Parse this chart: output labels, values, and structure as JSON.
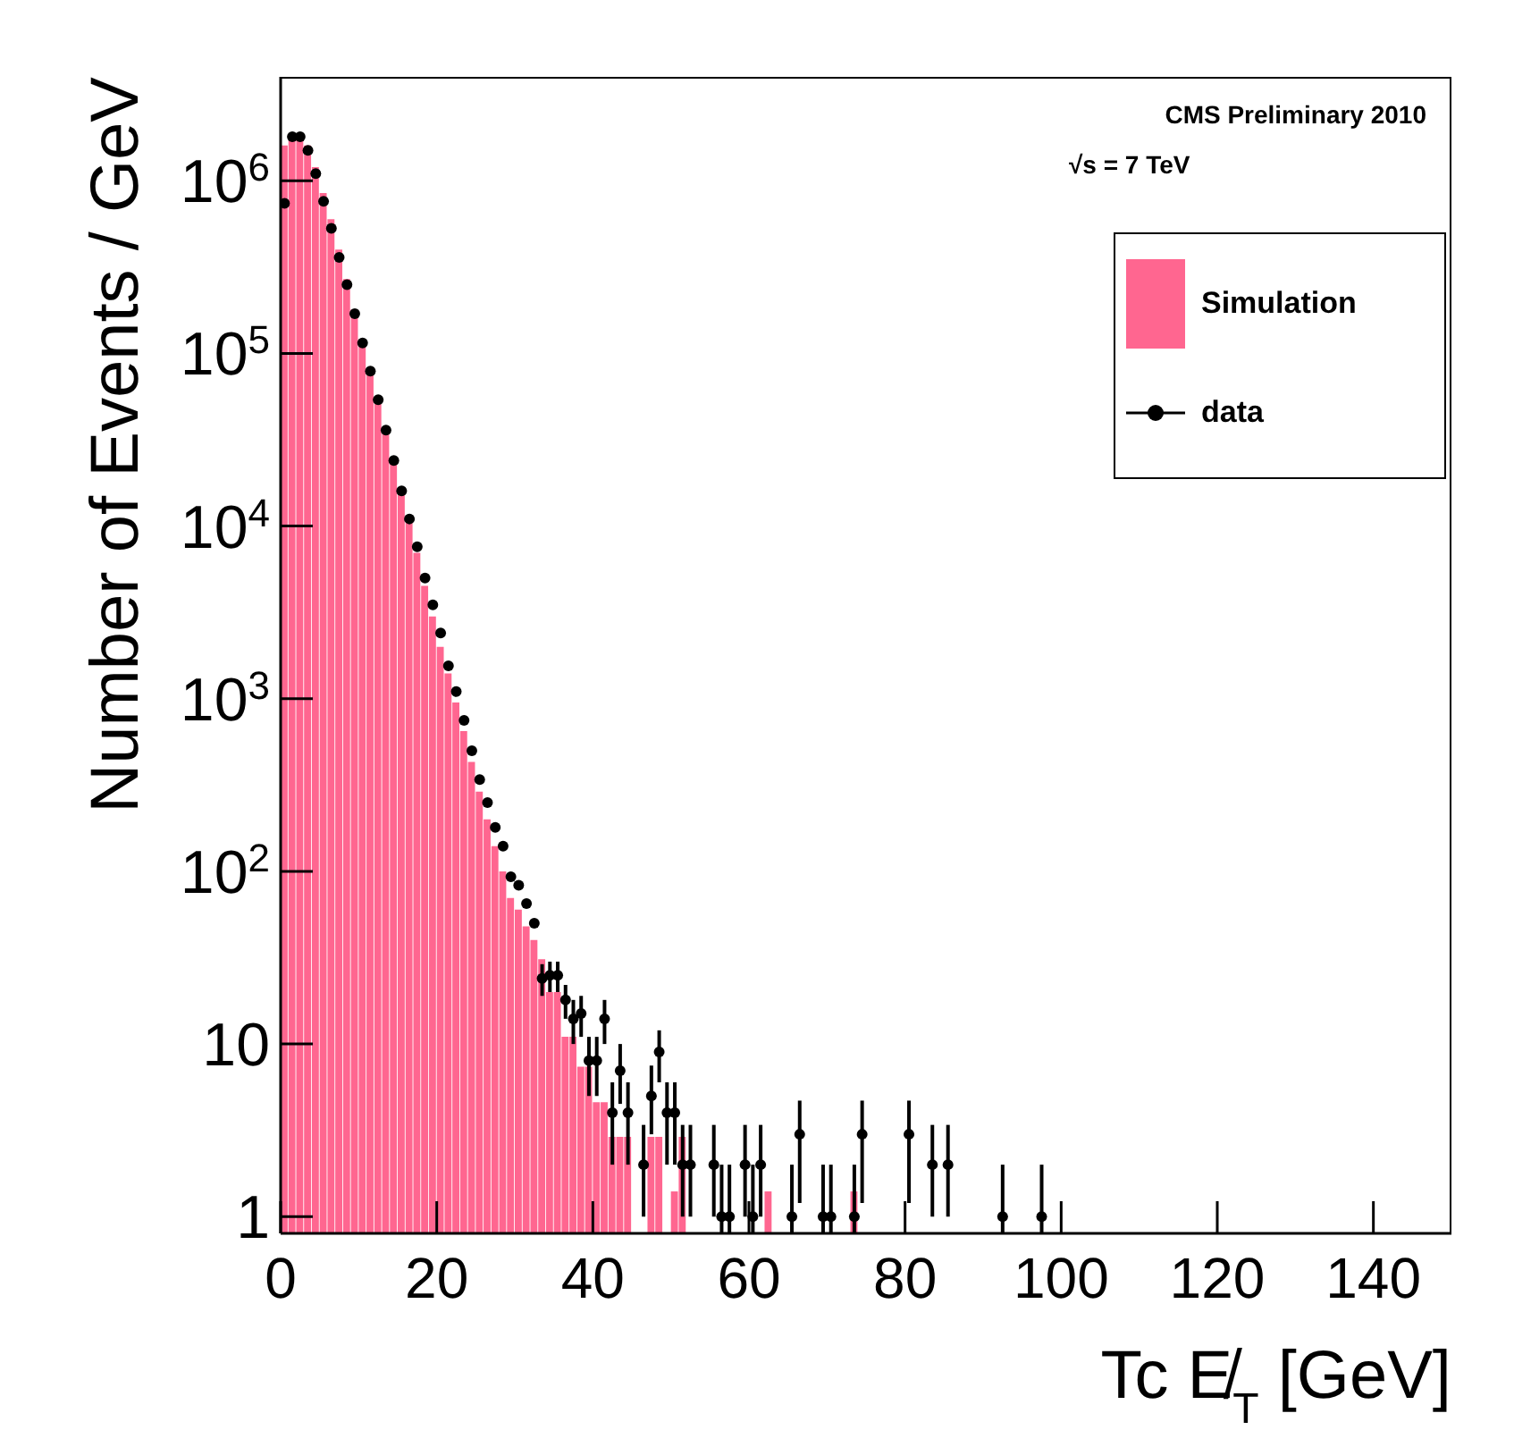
{
  "chart_data": {
    "type": "histogram",
    "xlabel": "Tc E̸$_{T}$ [GeV]",
    "ylabel": "Number of Events / GeV",
    "annotations": [
      "CMS Preliminary 2010",
      "√s = 7 TeV"
    ],
    "bins": [
      0,
      1,
      2,
      3,
      4,
      5,
      6,
      7,
      8,
      9,
      10,
      11,
      12,
      13,
      14,
      15,
      16,
      17,
      18,
      19,
      20,
      21,
      22,
      23,
      24,
      25,
      26,
      27,
      28,
      29,
      30,
      31,
      32,
      33,
      34,
      35,
      36,
      37,
      38,
      39,
      40,
      41,
      42,
      43,
      44,
      45,
      46,
      47,
      48,
      49,
      50,
      51,
      52,
      53,
      54,
      55,
      56,
      57,
      58,
      59,
      60,
      61,
      62,
      63,
      64,
      65,
      66,
      67,
      68,
      69,
      70,
      71,
      72,
      73,
      74
    ],
    "series": [
      {
        "name": "Simulation",
        "type": "histogram",
        "color": "#ff6690",
        "values": [
          1600000,
          1800000,
          1800000,
          1600000,
          1200000,
          850000,
          600000,
          400000,
          270000,
          180000,
          120000,
          80000,
          55000,
          36000,
          24000,
          16000,
          11000,
          7000,
          4500,
          3000,
          2000,
          1400,
          950,
          650,
          430,
          290,
          200,
          140,
          100,
          70,
          60,
          48,
          40,
          31,
          20,
          20,
          11,
          11,
          7.4,
          7.4,
          4.6,
          4.6,
          2.9,
          2.9,
          2.9,
          null,
          null,
          2.9,
          2.9,
          null,
          1.4,
          2.9,
          null,
          null,
          null,
          null,
          null,
          null,
          null,
          null,
          null,
          null,
          1.4,
          null,
          null,
          null,
          null,
          null,
          null,
          null,
          null,
          null,
          null,
          1.4
        ]
      },
      {
        "name": "data",
        "type": "scatter",
        "color": "#000000",
        "marker": "circle",
        "x": [
          0.5,
          1.5,
          2.5,
          3.5,
          4.5,
          5.5,
          6.5,
          7.5,
          8.5,
          9.5,
          10.5,
          11.5,
          12.5,
          13.5,
          14.5,
          15.5,
          16.5,
          17.5,
          18.5,
          19.5,
          20.5,
          21.5,
          22.5,
          23.5,
          24.5,
          25.5,
          26.5,
          27.5,
          28.5,
          29.5,
          30.5,
          31.5,
          32.5,
          33.5,
          34.5,
          35.5,
          36.5,
          37.5,
          38.5,
          39.5,
          40.5,
          41.5,
          42.5,
          43.5,
          44.5,
          46.5,
          47.5,
          48.5,
          49.5,
          50.5,
          51.5,
          52.5,
          55.5,
          56.5,
          57.5,
          59.5,
          60.5,
          61.5,
          65.5,
          66.5,
          69.5,
          70.5,
          73.5,
          74.5,
          80.5,
          83.5,
          85.5,
          92.5,
          97.5
        ],
        "values": [
          740000,
          1800000,
          1800000,
          1500000,
          1100000,
          760000,
          530000,
          360000,
          250000,
          170000,
          115000,
          79000,
          54000,
          36000,
          24000,
          16000,
          11000,
          7600,
          5000,
          3500,
          2400,
          1550,
          1100,
          750,
          500,
          340,
          250,
          180,
          140,
          93,
          83,
          65,
          50,
          24,
          25,
          25,
          18,
          14,
          15,
          8,
          8,
          14,
          4,
          7,
          4,
          2,
          5,
          9,
          4,
          4,
          2,
          2,
          2,
          1,
          1,
          2,
          1,
          2,
          1,
          3,
          1,
          1,
          1,
          3,
          3,
          2,
          2,
          1,
          1
        ],
        "errors": [
          null,
          null,
          null,
          null,
          null,
          null,
          null,
          null,
          null,
          null,
          null,
          null,
          null,
          null,
          null,
          null,
          null,
          null,
          null,
          null,
          null,
          null,
          null,
          null,
          null,
          null,
          null,
          null,
          null,
          null,
          null,
          null,
          null,
          [
            19,
            29
          ],
          [
            20,
            30
          ],
          [
            20,
            30
          ],
          [
            14,
            22
          ],
          [
            10,
            18
          ],
          [
            11,
            19
          ],
          [
            5,
            11
          ],
          [
            5,
            11
          ],
          [
            10,
            18
          ],
          [
            2,
            6
          ],
          [
            4.5,
            10
          ],
          [
            2,
            6
          ],
          [
            1,
            3.4
          ],
          [
            3,
            7.5
          ],
          [
            6,
            12
          ],
          [
            2,
            6
          ],
          [
            2,
            6
          ],
          [
            1,
            3.4
          ],
          [
            1,
            3.4
          ],
          [
            1,
            3.4
          ],
          [
            0.8,
            2
          ],
          [
            0.8,
            2
          ],
          [
            1,
            3.4
          ],
          [
            0.8,
            2
          ],
          [
            1,
            3.4
          ],
          [
            0.8,
            2
          ],
          [
            1.2,
            4.7
          ],
          [
            0.8,
            2
          ],
          [
            0.8,
            2
          ],
          [
            0.8,
            2
          ],
          [
            1.2,
            4.7
          ],
          [
            1.2,
            4.7
          ],
          [
            1,
            3.4
          ],
          [
            1,
            3.4
          ],
          [
            0.8,
            2
          ],
          [
            0.8,
            2
          ]
        ]
      }
    ],
    "xlim": [
      0,
      150
    ],
    "xticks": [
      0,
      20,
      40,
      60,
      80,
      100,
      120,
      140
    ],
    "ylim": [
      0.8,
      4000000
    ],
    "yticks": [
      1,
      10,
      {
        "value": 100,
        "label": "10$^{2}$"
      },
      {
        "value": 1000,
        "label": "10$^{3}$"
      },
      {
        "value": 10000,
        "label": "10$^{4}$"
      },
      {
        "value": 100000,
        "label": "10$^{5}$"
      },
      {
        "value": 1000000,
        "label": "10$^{6}$"
      }
    ],
    "log": "y",
    "grid": false,
    "legend": "top right"
  }
}
